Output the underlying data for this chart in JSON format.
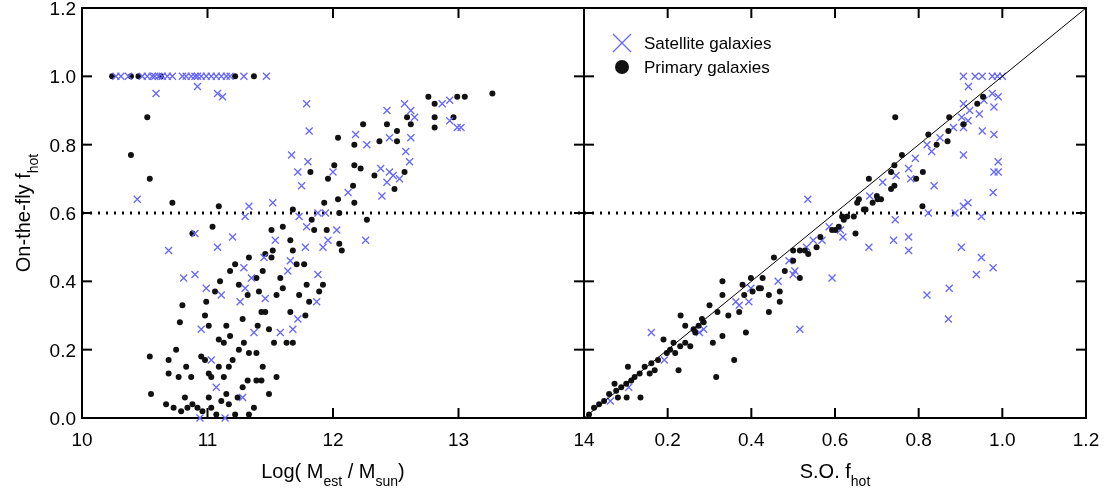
{
  "chart_data": [
    {
      "type": "scatter",
      "xlabel": "Log( M$_{est}$ / M$_{sun}$)",
      "ylabel": "On-the-fly f$_{hot}$",
      "xlim": [
        10,
        14
      ],
      "ylim": [
        0,
        1.2
      ],
      "xticks": [
        10,
        11,
        12,
        13,
        14
      ],
      "yticks": [
        {
          "value": 0,
          "label": "0.0"
        },
        0.2,
        0.4,
        0.6,
        0.8,
        {
          "value": 1,
          "label": "1.0"
        },
        1.2
      ],
      "legend": false,
      "ref_lines": [
        {
          "axis": "y",
          "value": 0.6,
          "line_style": "dotted",
          "color": "#000000"
        }
      ],
      "series": [
        {
          "type": "scatter",
          "marker": "circle",
          "color": "#111111",
          "x": [
            10.24,
            10.39,
            10.45,
            10.63,
            11.22,
            11.37,
            10.52,
            10.39,
            10.54,
            10.72,
            11.09,
            10.88,
            11.04,
            10.54,
            10.55,
            10.67,
            10.75,
            10.69,
            10.69,
            10.78,
            10.8,
            10.77,
            10.83,
            10.87,
            10.95,
            10.98,
            11.01,
            11.03,
            11.09,
            11.13,
            11.17,
            11.2,
            11.25,
            11.29,
            11.33,
            11.39,
            11.44,
            11.55,
            11.49,
            11.37,
            11.33,
            11.22,
            10.82,
            10.73,
            10.79,
            10.84,
            10.88,
            10.92,
            10.96,
            11.01,
            11.03,
            11.07,
            11.11,
            11.15,
            11.17,
            11.24,
            11.28,
            11.32,
            11.39,
            11.43,
            10.98,
            10.99,
            11.01,
            11.09,
            11.13,
            11.15,
            11.18,
            11.06,
            11.1,
            11.18,
            11.22,
            11.25,
            11.28,
            11.32,
            11.33,
            11.39,
            11.41,
            11.44,
            11.46,
            11.4,
            11.43,
            11.46,
            11.49,
            11.53,
            11.51,
            11.52,
            11.51,
            11.55,
            11.58,
            11.6,
            11.6,
            11.63,
            11.66,
            11.68,
            11.68,
            11.66,
            11.68,
            11.71,
            11.73,
            11.77,
            11.79,
            11.78,
            11.81,
            11.82,
            11.83,
            11.85,
            11.89,
            11.92,
            11.93,
            11.95,
            11.96,
            12.01,
            12.04,
            12.05,
            12.05,
            12.07,
            12.04,
            12.16,
            12.17,
            12.17,
            12.17,
            12.22,
            12.24,
            12.27,
            12.33,
            12.37,
            12.43,
            12.49,
            12.51,
            12.51,
            12.57,
            12.59,
            12.62,
            12.76,
            12.81,
            12.81,
            12.81,
            12.96,
            12.99,
            13.05,
            13.27
          ],
          "values": [
            1,
            1,
            1,
            1,
            1,
            1,
            0.88,
            0.77,
            0.7,
            0.63,
            0.62,
            0.54,
            0.56,
            0.18,
            0.07,
            0.04,
            0.2,
            0.17,
            0.13,
            0.28,
            0.33,
            0.12,
            0.15,
            0.12,
            0.18,
            0.17,
            0.13,
            0.12,
            0.15,
            0.12,
            0.15,
            0.17,
            0.2,
            0.22,
            0.19,
            0.19,
            0.15,
            0.12,
            0.07,
            0.03,
            0.01,
            0.01,
            0.06,
            0.03,
            0.02,
            0.03,
            0.04,
            0.03,
            0.02,
            0.06,
            0.03,
            0.01,
            0.05,
            0.07,
            0.04,
            0.06,
            0.09,
            0.11,
            0.11,
            0.11,
            0.3,
            0.34,
            0.27,
            0.23,
            0.22,
            0.27,
            0.24,
            0.37,
            0.4,
            0.43,
            0.45,
            0.39,
            0.29,
            0.36,
            0.47,
            0.41,
            0.37,
            0.43,
            0.48,
            0.27,
            0.31,
            0.31,
            0.26,
            0.22,
            0.55,
            0.49,
            0.47,
            0.36,
            0.41,
            0.38,
            0.56,
            0.22,
            0.31,
            0.22,
            0.61,
            0.52,
            0.49,
            0.45,
            0.36,
            0.45,
            0.39,
            0.3,
            0.34,
            0.72,
            0.58,
            0.55,
            0.37,
            0.39,
            0.63,
            0.55,
            0.7,
            0.74,
            0.64,
            0.6,
            0.51,
            0.49,
            0.82,
            0.68,
            0.63,
            0.74,
            0.8,
            0.73,
            0.86,
            0.58,
            0.71,
            0.81,
            0.86,
            0.67,
            0.81,
            0.84,
            0.72,
            0.88,
            0.86,
            0.94,
            0.92,
            0.88,
            0.85,
            0.88,
            0.94,
            0.94,
            0.95
          ]
        },
        {
          "type": "scatter",
          "marker": "cross",
          "color": "#6666ff",
          "x": [
            10.27,
            10.31,
            10.37,
            10.48,
            10.52,
            10.56,
            10.58,
            10.61,
            10.64,
            10.68,
            10.72,
            10.8,
            10.83,
            10.87,
            10.9,
            10.92,
            10.95,
            10.99,
            11.03,
            11.07,
            11.11,
            11.15,
            11.18,
            11.29,
            11.47,
            10.59,
            10.92,
            11.08,
            11.12,
            10.44,
            10.69,
            10.81,
            10.9,
            10.9,
            10.99,
            10.95,
            11.08,
            11.11,
            11.2,
            11.3,
            11.33,
            11.29,
            11.35,
            11.3,
            11.26,
            11.45,
            11.46,
            11.37,
            11.52,
            11.54,
            11.58,
            11.64,
            11.66,
            11.03,
            11.07,
            11.28,
            10.94,
            11.14,
            11.67,
            11.72,
            11.75,
            11.79,
            11.81,
            11.8,
            11.73,
            11.79,
            11.78,
            11.88,
            11.94,
            12.0,
            12.03,
            11.96,
            11.92,
            11.88,
            11.87,
            11.72,
            11.68,
            12.12,
            12.18,
            12.27,
            12.26,
            12.38,
            12.39,
            12.43,
            12.45,
            12.48,
            12.53,
            12.45,
            12.43,
            12.58,
            12.61,
            12.62,
            12.57,
            12.62,
            12.65,
            12.87,
            12.93,
            12.93,
            12.99,
            13.02
          ],
          "values": [
            1,
            1,
            1,
            1,
            1,
            1,
            1,
            1,
            1,
            1,
            1,
            1,
            1,
            1,
            1,
            1,
            1,
            1,
            1,
            1,
            1,
            1,
            1,
            1,
            1,
            0.95,
            0.97,
            0.95,
            0.94,
            0.64,
            0.49,
            0.41,
            0.42,
            0.54,
            0.38,
            0.26,
            0.5,
            0.36,
            0.53,
            0.59,
            0.62,
            0.44,
            0.41,
            0.38,
            0.34,
            0.47,
            0.35,
            0.25,
            0.63,
            0.52,
            0.25,
            0.43,
            0.46,
            0.17,
            0.09,
            0.06,
            0.0,
            0.0,
            0.77,
            0.72,
            0.68,
            0.92,
            0.84,
            0.75,
            0.59,
            0.56,
            0.5,
            0.6,
            0.6,
            0.72,
            0.55,
            0.52,
            0.5,
            0.42,
            0.34,
            0.29,
            0.26,
            0.66,
            0.83,
            0.8,
            0.52,
            0.73,
            0.65,
            0.69,
            0.72,
            0.71,
            0.7,
            0.82,
            0.9,
            0.78,
            0.75,
            0.82,
            0.92,
            0.9,
            0.88,
            0.92,
            0.93,
            0.87,
            0.85,
            0.85
          ]
        }
      ]
    },
    {
      "type": "scatter",
      "xlabel": "S.O. f$_{hot}$",
      "xlim": [
        0,
        1.2
      ],
      "ylim": [
        0,
        1.2
      ],
      "xticks": [
        {
          "value": 0,
          "label": null
        },
        0.2,
        0.4,
        0.6,
        0.8,
        {
          "value": 1,
          "label": "1.0"
        },
        1.2
      ],
      "yticks": [
        0,
        0.2,
        0.4,
        0.6,
        0.8,
        1,
        1.2
      ],
      "tick_labels": "x",
      "legend": "top left",
      "ref_lines": [
        {
          "axis": "y",
          "value": 0.6,
          "line_style": "dotted",
          "color": "#000000"
        }
      ],
      "series": [
        {
          "name": "Satellite galaxies",
          "type": "scatter",
          "marker": "cross",
          "color": "#6666ff",
          "x": [
            0.907,
            0.935,
            0.952,
            0.976,
            0.988,
            1.0,
            0.919,
            0.907,
            0.922,
            0.945,
            0.956,
            0.976,
            0.99,
            0.98,
            0.918,
            0.903,
            0.907,
            0.883,
            0.952,
            0.98,
            0.907,
            0.99,
            0.98,
            0.99,
            0.978,
            0.918,
            0.907,
            0.887,
            0.95,
            0.902,
            0.95,
            0.978,
            0.938,
            0.873,
            0.82,
            0.871,
            0.823,
            0.837,
            0.851,
            0.831,
            0.82,
            0.792,
            0.776,
            0.781,
            0.746,
            0.714,
            0.683,
            0.744,
            0.776,
            0.776,
            0.74,
            0.681,
            0.619,
            0.613,
            0.586,
            0.569,
            0.548,
            0.532,
            0.535,
            0.593,
            0.49,
            0.504,
            0.5,
            0.464,
            0.516,
            0.399,
            0.394,
            0.371,
            0.363,
            0.286,
            0.276,
            0.161,
            0.192,
            0.107,
            0.063
          ],
          "values": [
            1,
            1,
            1,
            1,
            1,
            1,
            0.97,
            0.92,
            0.9,
            0.89,
            0.93,
            0.95,
            0.94,
            0.91,
            0.87,
            0.88,
            0.85,
            0.85,
            0.84,
            0.83,
            0.77,
            0.75,
            0.72,
            0.72,
            0.66,
            0.63,
            0.62,
            0.6,
            0.59,
            0.5,
            0.47,
            0.44,
            0.42,
            0.38,
            0.36,
            0.29,
            0.6,
            0.68,
            0.82,
            0.78,
            0.8,
            0.76,
            0.73,
            0.7,
            0.71,
            0.69,
            0.65,
            0.58,
            0.53,
            0.49,
            0.52,
            0.5,
            0.53,
            0.55,
            0.56,
            0.52,
            0.52,
            0.5,
            0.64,
            0.41,
            0.46,
            0.43,
            0.42,
            0.4,
            0.26,
            0.38,
            0.34,
            0.33,
            0.34,
            0.26,
            0.25,
            0.25,
            0.17,
            0.09,
            0.05
          ]
        },
        {
          "name": "Primary galaxies",
          "type": "scatter",
          "marker": "circle",
          "color": "#111111",
          "x": [
            0.954,
            0.94,
            0.907,
            0.873,
            0.871,
            0.823,
            0.843,
            0.869,
            0.744,
            0.76,
            0.742,
            0.734,
            0.794,
            0.81,
            0.742,
            0.734,
            0.681,
            0.7,
            0.71,
            0.69,
            0.669,
            0.657,
            0.809,
            0.629,
            0.617,
            0.645,
            0.593,
            0.649,
            0.556,
            0.536,
            0.516,
            0.5,
            0.454,
            0.48,
            0.516,
            0.442,
            0.468,
            0.468,
            0.442,
            0.427,
            0.418,
            0.399,
            0.383,
            0.379,
            0.331,
            0.331,
            0.345,
            0.319,
            0.331,
            0.3,
            0.308,
            0.286,
            0.274,
            0.262,
            0.242,
            0.231,
            0.254,
            0.242,
            0.23,
            0.218,
            0.206,
            0.198,
            0.19,
            0.226,
            0.359,
            0.316,
            0.169,
            0.157,
            0.145,
            0.133,
            0.121,
            0.105,
            0.113,
            0.101,
            0.089,
            0.073,
            0.077,
            0.06,
            0.048,
            0.036,
            0.024,
            0.012,
            0.102,
            0.135,
            0.081,
            0.161,
            0.177,
            0.214,
            0.266,
            0.282,
            0.387,
            0.371,
            0.403,
            0.423,
            0.5,
            0.528,
            0.565,
            0.601,
            0.609,
            0.621,
            0.653,
            0.673,
            0.702
          ],
          "values": [
            0.94,
            0.92,
            0.86,
            0.88,
            0.84,
            0.83,
            0.8,
            0.81,
            0.88,
            0.77,
            0.74,
            0.72,
            0.7,
            0.72,
            0.68,
            0.67,
            0.7,
            0.65,
            0.64,
            0.63,
            0.61,
            0.64,
            0.62,
            0.59,
            0.59,
            0.59,
            0.55,
            0.54,
            0.5,
            0.48,
            0.49,
            0.49,
            0.47,
            0.43,
            0.41,
            0.36,
            0.37,
            0.34,
            0.31,
            0.41,
            0.38,
            0.41,
            0.36,
            0.39,
            0.4,
            0.36,
            0.3,
            0.31,
            0.24,
            0.33,
            0.22,
            0.28,
            0.27,
            0.26,
            0.27,
            0.3,
            0.21,
            0.22,
            0.21,
            0.19,
            0.2,
            0.19,
            0.23,
            0.14,
            0.17,
            0.12,
            0.14,
            0.13,
            0.15,
            0.13,
            0.12,
            0.15,
            0.11,
            0.1,
            0.09,
            0.1,
            0.08,
            0.07,
            0.05,
            0.04,
            0.03,
            0.01,
            0.06,
            0.06,
            0.06,
            0.16,
            0.17,
            0.22,
            0.25,
            0.29,
            0.25,
            0.31,
            0.37,
            0.38,
            0.46,
            0.49,
            0.53,
            0.55,
            0.56,
            0.58,
            0.63,
            0.61,
            0.64
          ]
        },
        {
          "type": "line",
          "color": "#000000",
          "x": [
            0,
            1.2
          ],
          "values": [
            0,
            1.2
          ]
        }
      ]
    }
  ]
}
